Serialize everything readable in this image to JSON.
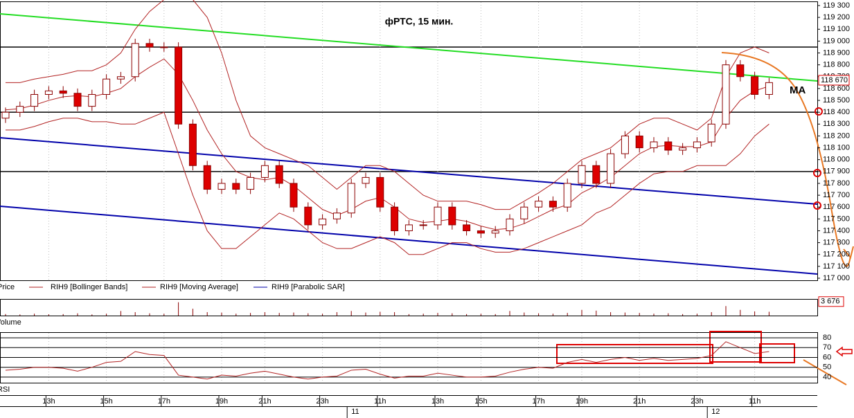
{
  "chart_data": {
    "type": "candlestick",
    "title": "фРТС,  15 мин.",
    "annotation": "MA",
    "legend": [
      "Price",
      "RIH9 [Bollinger Bands]",
      "RIH9 [Moving Average]",
      "RIH9 [Parabolic SAR]"
    ],
    "panel_labels": [
      "Volume",
      "RSI"
    ],
    "categories": [
      null,
      null,
      null,
      "13h",
      null,
      null,
      null,
      "15h",
      null,
      null,
      null,
      "17h",
      null,
      null,
      null,
      "19h",
      null,
      null,
      "21h",
      null,
      null,
      null,
      "23h",
      null,
      null,
      null,
      "11h",
      null,
      null,
      null,
      "13h",
      null,
      null,
      "15h",
      null,
      null,
      null,
      "17h",
      null,
      null,
      "19h",
      null,
      null,
      null,
      "21h",
      null,
      null,
      null,
      "23h",
      null,
      null,
      null,
      "11h",
      null
    ],
    "day_labels": [
      null,
      null,
      null,
      null,
      null,
      null,
      null,
      null,
      null,
      null,
      null,
      null,
      null,
      null,
      null,
      null,
      null,
      null,
      null,
      null,
      null,
      null,
      null,
      null,
      "11",
      null,
      null,
      null,
      null,
      null,
      null,
      null,
      null,
      null,
      null,
      null,
      null,
      null,
      null,
      null,
      null,
      null,
      null,
      null,
      null,
      null,
      null,
      null,
      null,
      "12",
      null,
      null,
      null,
      null
    ],
    "open": [
      118350,
      118400,
      118450,
      118550,
      118580,
      118560,
      118450,
      118550,
      118680,
      118700,
      118980,
      118950,
      118950,
      118300,
      117950,
      117750,
      117800,
      117750,
      117850,
      117950,
      117800,
      117600,
      117450,
      117500,
      117550,
      117800,
      117850,
      117600,
      117400,
      117450,
      117450,
      117600,
      117450,
      117400,
      117380,
      117400,
      117500,
      117600,
      117650,
      117600,
      117800,
      117950,
      117800,
      118050,
      118200,
      118100,
      118150,
      118080,
      118100,
      118150,
      118300,
      118800,
      118700,
      118550
    ],
    "high": [
      118440,
      118490,
      118590,
      118620,
      118620,
      118600,
      118590,
      118720,
      118740,
      119020,
      119020,
      118990,
      118990,
      118340,
      117990,
      117840,
      117840,
      117890,
      117990,
      117990,
      117840,
      117640,
      117540,
      117590,
      117840,
      117890,
      117890,
      117640,
      117490,
      117490,
      117640,
      117640,
      117490,
      117440,
      117440,
      117540,
      117640,
      117690,
      117690,
      117840,
      117990,
      117990,
      118090,
      118240,
      118240,
      118190,
      118190,
      118140,
      118190,
      118340,
      118840,
      118840,
      118740,
      118690
    ],
    "low": [
      118310,
      118360,
      118410,
      118510,
      118520,
      118410,
      118410,
      118510,
      118640,
      118660,
      118910,
      118910,
      118260,
      117910,
      117710,
      117710,
      117710,
      117710,
      117810,
      117760,
      117560,
      117410,
      117410,
      117460,
      117510,
      117760,
      117560,
      117360,
      117360,
      117410,
      117410,
      117410,
      117360,
      117340,
      117340,
      117360,
      117460,
      117560,
      117560,
      117560,
      117760,
      117760,
      117760,
      118010,
      118060,
      118060,
      118040,
      118040,
      118060,
      118110,
      118260,
      118660,
      118510,
      118510
    ],
    "close": [
      118400,
      118450,
      118550,
      118580,
      118560,
      118450,
      118550,
      118680,
      118700,
      118980,
      118950,
      118950,
      118300,
      117950,
      117750,
      117800,
      117750,
      117850,
      117950,
      117800,
      117600,
      117450,
      117500,
      117550,
      117800,
      117850,
      117600,
      117400,
      117450,
      117450,
      117600,
      117450,
      117400,
      117380,
      117400,
      117500,
      117600,
      117650,
      117600,
      117800,
      117950,
      117800,
      118050,
      118200,
      118100,
      118150,
      118080,
      118100,
      118150,
      118300,
      118800,
      118700,
      118550,
      118650
    ],
    "up_color": "#ffffff",
    "down_color": "#dd0000",
    "wick_color": "#8b0000",
    "ma": [
      118420,
      118430,
      118460,
      118500,
      118530,
      118540,
      118530,
      118560,
      118600,
      118700,
      118780,
      118850,
      118720,
      118500,
      118250,
      118050,
      117900,
      117850,
      117830,
      117850,
      117780,
      117680,
      117580,
      117530,
      117580,
      117650,
      117680,
      117600,
      117500,
      117470,
      117480,
      117500,
      117480,
      117440,
      117410,
      117420,
      117460,
      117520,
      117580,
      117620,
      117720,
      117780,
      117850,
      117950,
      118050,
      118110,
      118120,
      118110,
      118110,
      118150,
      118350,
      118500,
      118580,
      118620
    ],
    "bb_upper": [
      118650,
      118650,
      118680,
      118700,
      118720,
      118750,
      118750,
      118800,
      118900,
      119100,
      119250,
      119350,
      119400,
      119350,
      119200,
      118900,
      118500,
      118200,
      118100,
      118050,
      118000,
      117950,
      117850,
      117750,
      117850,
      117950,
      117950,
      117900,
      117800,
      117700,
      117650,
      117650,
      117650,
      117620,
      117580,
      117580,
      117650,
      117720,
      117800,
      117900,
      118000,
      118050,
      118100,
      118200,
      118300,
      118350,
      118350,
      118300,
      118250,
      118350,
      118700,
      118900,
      118950,
      118900
    ],
    "bb_lower": [
      118250,
      118250,
      118280,
      118320,
      118350,
      118350,
      118320,
      118320,
      118300,
      118300,
      118350,
      118400,
      118050,
      117700,
      117400,
      117250,
      117250,
      117350,
      117450,
      117550,
      117500,
      117400,
      117300,
      117250,
      117250,
      117300,
      117350,
      117300,
      117200,
      117200,
      117250,
      117300,
      117300,
      117250,
      117220,
      117220,
      117250,
      117300,
      117350,
      117400,
      117450,
      117550,
      117600,
      117700,
      117800,
      117880,
      117900,
      117900,
      117950,
      117950,
      117950,
      118050,
      118200,
      118300
    ],
    "indicator_color": "#b22222",
    "levels": [
      118950,
      118400,
      117900
    ],
    "ylim": [
      117000,
      119300
    ],
    "yticks": [
      {
        "value": 119300,
        "label": "119 300"
      },
      {
        "value": 119200,
        "label": "119 200"
      },
      {
        "value": 119100,
        "label": "119 100"
      },
      {
        "value": 119000,
        "label": "119 000"
      },
      {
        "value": 118900,
        "label": "118 900"
      },
      {
        "value": 118800,
        "label": "118 800"
      },
      {
        "value": 118700,
        "label": "118 700"
      },
      {
        "value": 118600,
        "label": "118 600"
      },
      {
        "value": 118500,
        "label": "118 500"
      },
      {
        "value": 118400,
        "label": "118 400"
      },
      {
        "value": 118300,
        "label": "118 300"
      },
      {
        "value": 118200,
        "label": "118 200"
      },
      {
        "value": 118100,
        "label": "118 100"
      },
      {
        "value": 118000,
        "label": "118 000"
      },
      {
        "value": 117900,
        "label": "117 900"
      },
      {
        "value": 117800,
        "label": "117 800"
      },
      {
        "value": 117700,
        "label": "117 700"
      },
      {
        "value": 117600,
        "label": "117 600"
      },
      {
        "value": 117500,
        "label": "117 500"
      },
      {
        "value": 117400,
        "label": "117 400"
      },
      {
        "value": 117300,
        "label": "117 300"
      },
      {
        "value": 117200,
        "label": "117 200"
      },
      {
        "value": 117100,
        "label": "117 100"
      },
      {
        "value": 117000,
        "label": "117 000"
      }
    ],
    "last_price": {
      "value": 118670,
      "label": "118 670"
    },
    "volume": [
      400,
      300,
      500,
      350,
      400,
      600,
      300,
      500,
      1200,
      900,
      600,
      500,
      3500,
      1800,
      900,
      800,
      500,
      700,
      900,
      700,
      800,
      600,
      500,
      900,
      1200,
      800,
      1000,
      900,
      400,
      500,
      700,
      600,
      400,
      500,
      400,
      1200,
      800,
      600,
      500,
      700,
      1500,
      1300,
      900,
      800,
      700,
      500,
      600,
      400,
      500,
      900,
      2500,
      1500,
      1100,
      1000
    ],
    "volume_ylim": [
      0,
      4000
    ],
    "last_volume": {
      "value": 3676,
      "label": "3 676"
    },
    "rsi": [
      47,
      48,
      50,
      50,
      49,
      46,
      50,
      55,
      56,
      66,
      63,
      62,
      42,
      40,
      38,
      42,
      41,
      44,
      46,
      43,
      40,
      38,
      40,
      41,
      47,
      48,
      43,
      39,
      41,
      41,
      44,
      42,
      40,
      40,
      41,
      45,
      48,
      50,
      49,
      55,
      58,
      55,
      58,
      60,
      57,
      59,
      57,
      58,
      59,
      62,
      76,
      70,
      64,
      66
    ],
    "rsi_ylim": [
      35,
      85
    ],
    "rsi_yticks": [
      80,
      70,
      60,
      50,
      40
    ]
  }
}
